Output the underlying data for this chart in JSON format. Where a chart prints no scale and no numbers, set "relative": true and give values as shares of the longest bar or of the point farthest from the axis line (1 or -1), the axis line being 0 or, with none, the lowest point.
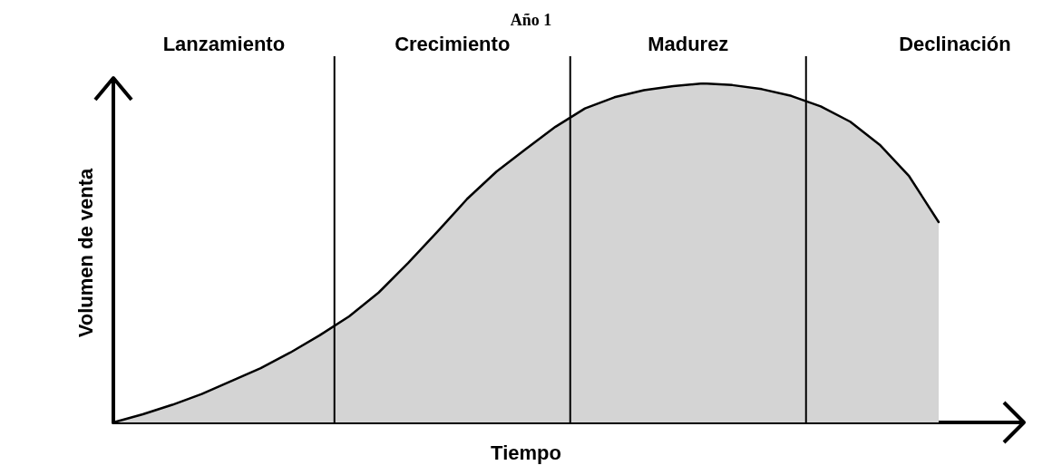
{
  "chart_data": {
    "type": "area",
    "title": "Año 1",
    "xlabel": "Tiempo",
    "ylabel": "Volumen de venta",
    "relative": true,
    "grid": false,
    "marker": "none",
    "line_style": "solid",
    "categories": [
      null,
      null,
      null,
      null,
      null,
      null,
      null,
      null,
      null,
      null,
      null,
      null,
      null,
      null,
      null,
      null,
      null,
      null,
      null,
      null,
      null,
      null,
      null,
      null,
      null,
      null,
      null,
      null,
      null
    ],
    "series": [
      {
        "color": "#000000",
        "values": [
          0,
          0.024,
          0.052,
          0.084,
          0.122,
          0.16,
          0.206,
          0.257,
          0.313,
          0.383,
          0.47,
          0.563,
          0.659,
          0.74,
          0.807,
          0.872,
          0.926,
          0.959,
          0.98,
          0.992,
          1,
          0.995,
          0.983,
          0.963,
          0.932,
          0.887,
          0.819,
          0.726,
          0.591
        ]
      }
    ],
    "annotations": [
      "Lanzamiento",
      "Crecimiento",
      "Madurez",
      "Declinación"
    ]
  }
}
